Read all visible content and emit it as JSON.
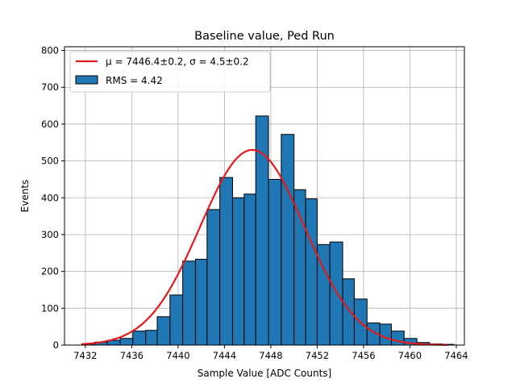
{
  "chart_data": {
    "type": "bar",
    "title": "Baseline value, Ped Run",
    "xlabel": "Sample Value [ADC Counts]",
    "ylabel": "Events",
    "xlim": [
      7430.2,
      7464.7
    ],
    "ylim": [
      0,
      810
    ],
    "xticks": [
      7432,
      7436,
      7440,
      7444,
      7448,
      7452,
      7456,
      7460,
      7464
    ],
    "yticks": [
      0,
      100,
      200,
      300,
      400,
      500,
      600,
      700,
      800
    ],
    "grid": true,
    "bar_color": "#1f77b4",
    "fit_color": "#e31a1c",
    "legend_placement": "top-left",
    "bins": [
      {
        "x0": 7431.7,
        "x1": 7432.8,
        "value": 3
      },
      {
        "x0": 7432.8,
        "x1": 7433.9,
        "value": 8
      },
      {
        "x0": 7433.9,
        "x1": 7435.0,
        "value": 13
      },
      {
        "x0": 7435.0,
        "x1": 7436.1,
        "value": 18
      },
      {
        "x0": 7436.1,
        "x1": 7437.2,
        "value": 38
      },
      {
        "x0": 7437.2,
        "x1": 7438.2,
        "value": 40
      },
      {
        "x0": 7438.2,
        "x1": 7439.3,
        "value": 77
      },
      {
        "x0": 7439.3,
        "x1": 7440.4,
        "value": 136
      },
      {
        "x0": 7440.4,
        "x1": 7441.5,
        "value": 228
      },
      {
        "x0": 7441.5,
        "x1": 7442.5,
        "value": 233
      },
      {
        "x0": 7442.5,
        "x1": 7443.6,
        "value": 368
      },
      {
        "x0": 7443.6,
        "x1": 7444.7,
        "value": 455
      },
      {
        "x0": 7444.7,
        "x1": 7445.7,
        "value": 400
      },
      {
        "x0": 7445.7,
        "x1": 7446.7,
        "value": 410
      },
      {
        "x0": 7446.7,
        "x1": 7447.8,
        "value": 622
      },
      {
        "x0": 7447.8,
        "x1": 7448.9,
        "value": 450
      },
      {
        "x0": 7448.9,
        "x1": 7450.0,
        "value": 572
      },
      {
        "x0": 7450.0,
        "x1": 7451.0,
        "value": 422
      },
      {
        "x0": 7451.0,
        "x1": 7452.0,
        "value": 397
      },
      {
        "x0": 7452.0,
        "x1": 7453.1,
        "value": 273
      },
      {
        "x0": 7453.1,
        "x1": 7454.2,
        "value": 280
      },
      {
        "x0": 7454.2,
        "x1": 7455.2,
        "value": 180
      },
      {
        "x0": 7455.2,
        "x1": 7456.3,
        "value": 125
      },
      {
        "x0": 7456.3,
        "x1": 7457.4,
        "value": 60
      },
      {
        "x0": 7457.4,
        "x1": 7458.4,
        "value": 57
      },
      {
        "x0": 7458.4,
        "x1": 7459.5,
        "value": 38
      },
      {
        "x0": 7459.5,
        "x1": 7460.6,
        "value": 18
      },
      {
        "x0": 7460.6,
        "x1": 7461.7,
        "value": 7
      },
      {
        "x0": 7461.7,
        "x1": 7462.8,
        "value": 3
      },
      {
        "x0": 7462.8,
        "x1": 7463.8,
        "value": 2
      }
    ],
    "fit": {
      "type": "gaussian",
      "mu": 7446.4,
      "sigma": 4.5,
      "amplitude": 530,
      "x_range": [
        7431.7,
        7463.3
      ]
    },
    "legend": [
      {
        "kind": "line",
        "label": "μ = 7446.4±0.2, σ = 4.5±0.2",
        "color": "#e31a1c"
      },
      {
        "kind": "patch",
        "label": "RMS = 4.42",
        "color": "#1f77b4"
      }
    ]
  }
}
